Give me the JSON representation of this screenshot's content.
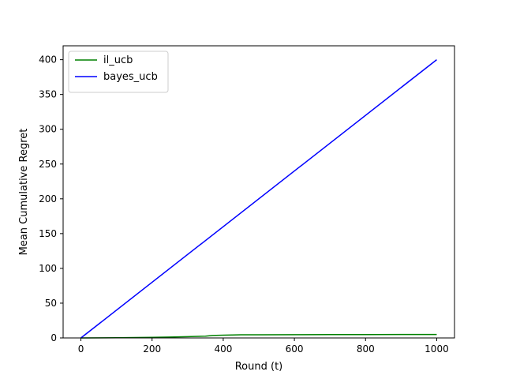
{
  "chart_data": {
    "type": "line",
    "title": "",
    "xlabel": "Round (t)",
    "ylabel": "Mean Cumulative Regret",
    "xlim": [
      -50,
      1050
    ],
    "ylim": [
      0,
      420
    ],
    "xticks": [
      0,
      200,
      400,
      600,
      800,
      1000
    ],
    "yticks": [
      0,
      50,
      100,
      150,
      200,
      250,
      300,
      350,
      400
    ],
    "grid": false,
    "legend_position": "upper-left",
    "series": [
      {
        "name": "il_ucb",
        "color": "#008000",
        "x": [
          0,
          100,
          200,
          250,
          300,
          350,
          370,
          400,
          450,
          500,
          600,
          700,
          800,
          900,
          1000
        ],
        "y": [
          0,
          0.3,
          0.8,
          1.3,
          1.8,
          2.6,
          3.6,
          4.0,
          4.5,
          4.6,
          4.7,
          4.8,
          4.8,
          4.9,
          5.0
        ]
      },
      {
        "name": "bayes_ucb",
        "color": "#0000ff",
        "x": [
          0,
          1000
        ],
        "y": [
          0,
          400
        ]
      }
    ]
  }
}
